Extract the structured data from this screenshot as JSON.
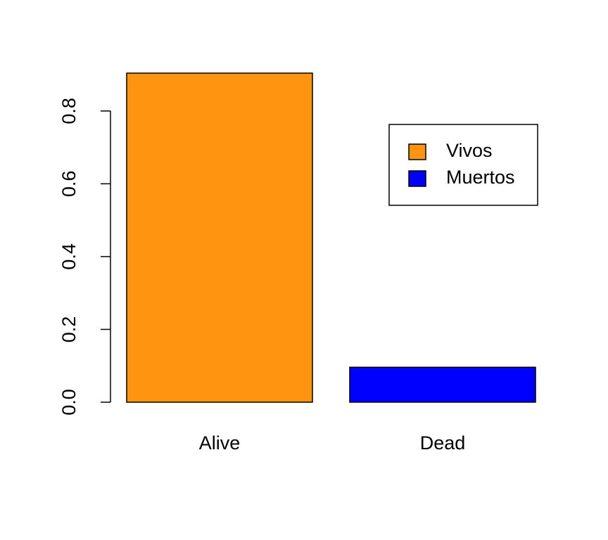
{
  "chart_data": {
    "type": "bar",
    "categories": [
      "Alive",
      "Dead"
    ],
    "values": [
      0.904,
      0.096
    ],
    "colors": [
      "#ff9410",
      "#0000ff"
    ],
    "ylim": [
      0,
      0.904
    ],
    "yticks": [
      {
        "value": 0,
        "label": "0.0"
      },
      0.2,
      0.4,
      0.6,
      0.8
    ],
    "legend": {
      "labels": [
        "Vivos",
        "Muertos"
      ],
      "position": "topright"
    }
  }
}
